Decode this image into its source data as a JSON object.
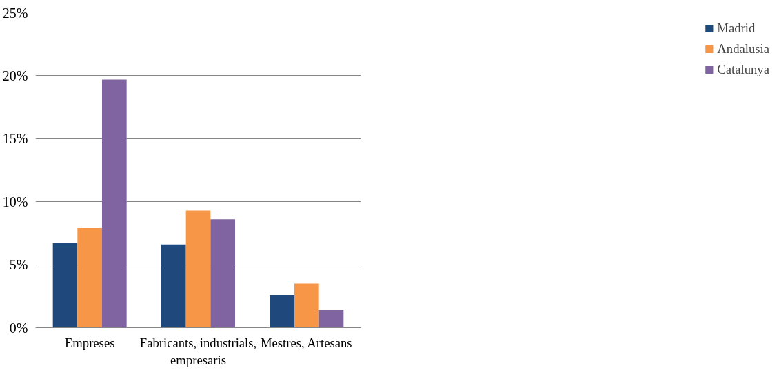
{
  "chart_data": {
    "type": "bar",
    "categories": [
      "Empreses",
      "Fabricants, industrials, empresaris",
      "Mestres, Artesans"
    ],
    "series": [
      {
        "name": "Madrid",
        "color": "#1f497d",
        "values": [
          6.7,
          6.6,
          2.6
        ]
      },
      {
        "name": "Andalusia",
        "color": "#f79646",
        "values": [
          7.9,
          9.3,
          3.5
        ]
      },
      {
        "name": "Catalunya",
        "color": "#8064a2",
        "values": [
          19.7,
          8.6,
          1.4
        ]
      }
    ],
    "ylim": [
      0,
      25
    ],
    "yticks": [
      {
        "value": 0,
        "label": "0%"
      },
      {
        "value": 5,
        "label": "5%"
      },
      {
        "value": 10,
        "label": "10%"
      },
      {
        "value": 15,
        "label": "15%"
      },
      {
        "value": 20,
        "label": "20%"
      },
      {
        "value": 25,
        "label": "25%"
      }
    ],
    "grid": "y",
    "legend": "right"
  }
}
